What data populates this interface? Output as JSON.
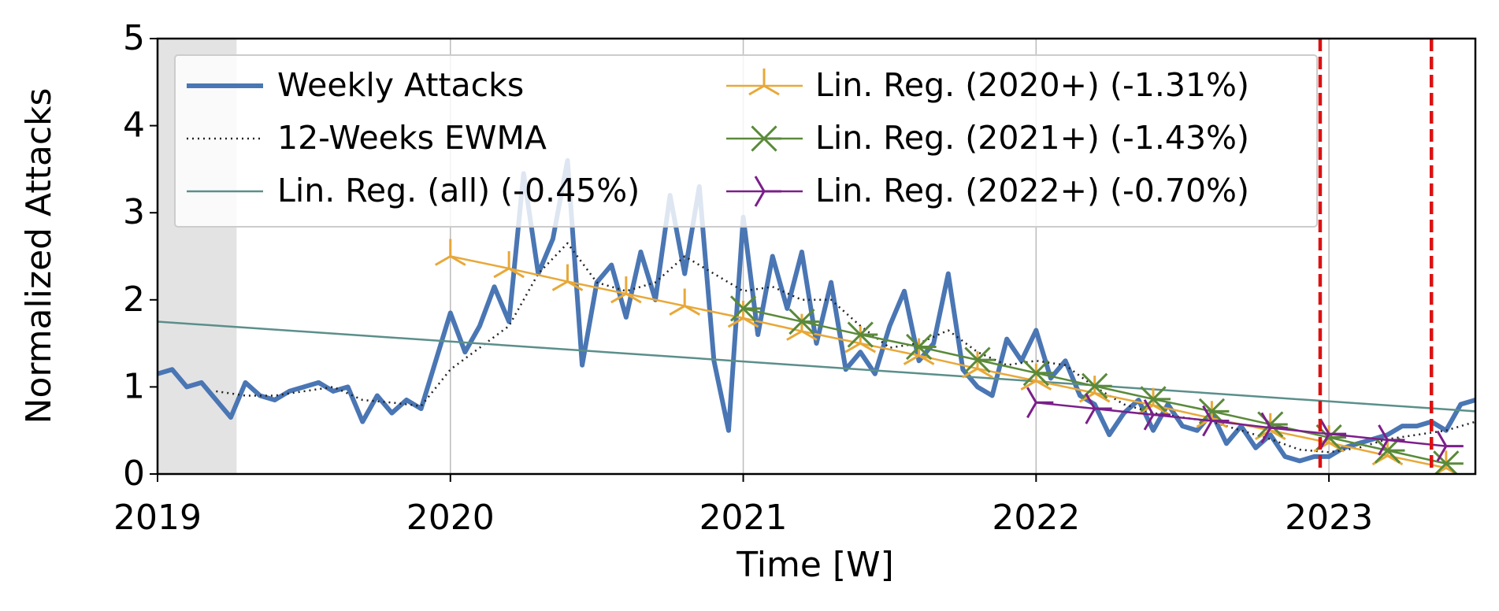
{
  "chart_data": {
    "type": "line",
    "xlabel": "Time [W]",
    "ylabel": "Normalized Attacks",
    "xlim": [
      2019,
      2023.5
    ],
    "ylim": [
      0,
      5
    ],
    "xticks": [
      2019,
      2020,
      2021,
      2022,
      2023
    ],
    "yticks": [
      0,
      1,
      2,
      3,
      4,
      5
    ],
    "grid": "x",
    "legend": "upper left",
    "shaded_span": [
      2019,
      2019.27
    ],
    "shaded_color": "#e3e3e3",
    "vlines": [
      2022.97,
      2023.35
    ],
    "vline_color": "#dd1111",
    "series": [
      {
        "name": "Weekly Attacks",
        "color": "#4a76b4",
        "linestyle": "thick",
        "x": [
          2019.0,
          2019.05,
          2019.1,
          2019.15,
          2019.2,
          2019.25,
          2019.3,
          2019.35,
          2019.4,
          2019.45,
          2019.5,
          2019.55,
          2019.6,
          2019.65,
          2019.7,
          2019.75,
          2019.8,
          2019.85,
          2019.9,
          2019.95,
          2020.0,
          2020.05,
          2020.1,
          2020.15,
          2020.2,
          2020.25,
          2020.3,
          2020.35,
          2020.4,
          2020.45,
          2020.5,
          2020.55,
          2020.6,
          2020.65,
          2020.7,
          2020.75,
          2020.8,
          2020.85,
          2020.9,
          2020.95,
          2021.0,
          2021.05,
          2021.1,
          2021.15,
          2021.2,
          2021.25,
          2021.3,
          2021.35,
          2021.4,
          2021.45,
          2021.5,
          2021.55,
          2021.6,
          2021.65,
          2021.7,
          2021.75,
          2021.8,
          2021.85,
          2021.9,
          2021.95,
          2022.0,
          2022.05,
          2022.1,
          2022.15,
          2022.2,
          2022.25,
          2022.3,
          2022.35,
          2022.4,
          2022.45,
          2022.5,
          2022.55,
          2022.6,
          2022.65,
          2022.7,
          2022.75,
          2022.8,
          2022.85,
          2022.9,
          2022.95,
          2023.0,
          2023.05,
          2023.1,
          2023.15,
          2023.2,
          2023.25,
          2023.3,
          2023.35,
          2023.4,
          2023.45,
          2023.5
        ],
        "values": [
          1.15,
          1.2,
          1.0,
          1.05,
          0.85,
          0.65,
          1.05,
          0.9,
          0.85,
          0.95,
          1.0,
          1.05,
          0.95,
          1.0,
          0.6,
          0.9,
          0.7,
          0.85,
          0.75,
          1.3,
          1.85,
          1.4,
          1.7,
          2.15,
          1.75,
          3.45,
          2.3,
          2.7,
          3.6,
          1.25,
          2.2,
          2.4,
          1.8,
          2.55,
          2.0,
          3.2,
          2.3,
          3.3,
          1.3,
          0.5,
          2.95,
          1.6,
          2.5,
          1.9,
          2.55,
          1.5,
          2.2,
          1.2,
          1.4,
          1.15,
          1.7,
          2.1,
          1.3,
          1.5,
          2.3,
          1.2,
          1.0,
          0.9,
          1.55,
          1.3,
          1.65,
          1.1,
          1.3,
          0.9,
          0.8,
          0.45,
          0.7,
          0.85,
          0.5,
          0.8,
          0.55,
          0.5,
          0.7,
          0.35,
          0.55,
          0.3,
          0.45,
          0.2,
          0.15,
          0.2,
          0.2,
          0.3,
          0.35,
          0.4,
          0.45,
          0.55,
          0.55,
          0.6,
          0.5,
          0.8,
          0.85
        ]
      },
      {
        "name": "12-Weeks EWMA",
        "color": "#222222",
        "linestyle": "dotted",
        "x": [
          2019.2,
          2019.3,
          2019.4,
          2019.5,
          2019.6,
          2019.7,
          2019.8,
          2019.9,
          2020.0,
          2020.1,
          2020.2,
          2020.3,
          2020.4,
          2020.5,
          2020.6,
          2020.7,
          2020.8,
          2020.9,
          2021.0,
          2021.1,
          2021.2,
          2021.3,
          2021.4,
          2021.5,
          2021.6,
          2021.7,
          2021.8,
          2021.9,
          2022.0,
          2022.1,
          2022.2,
          2022.3,
          2022.4,
          2022.5,
          2022.6,
          2022.7,
          2022.8,
          2022.9,
          2023.0,
          2023.1,
          2023.2,
          2023.3,
          2023.4,
          2023.5
        ],
        "values": [
          0.95,
          0.9,
          0.9,
          0.95,
          1.0,
          0.85,
          0.82,
          0.78,
          1.2,
          1.45,
          1.7,
          2.3,
          2.65,
          2.2,
          2.1,
          2.2,
          2.5,
          2.3,
          2.1,
          2.15,
          2.0,
          2.0,
          1.7,
          1.45,
          1.5,
          1.65,
          1.4,
          1.25,
          1.3,
          1.25,
          1.0,
          0.8,
          0.7,
          0.65,
          0.6,
          0.5,
          0.4,
          0.28,
          0.25,
          0.3,
          0.4,
          0.45,
          0.5,
          0.6
        ]
      },
      {
        "name": "Lin. Reg. (all) (-0.45%)",
        "color": "#5b8f8a",
        "linestyle": "solid",
        "x": [
          2019.0,
          2023.5
        ],
        "values": [
          1.75,
          0.72
        ]
      },
      {
        "name": "Lin. Reg. (2020+) (-1.31%)",
        "color": "#e8a838",
        "linestyle": "solid",
        "marker": "tri_down",
        "x": [
          2020.0,
          2020.2,
          2020.4,
          2020.6,
          2020.8,
          2021.0,
          2021.2,
          2021.4,
          2021.6,
          2021.8,
          2022.0,
          2022.2,
          2022.4,
          2022.6,
          2022.8,
          2023.0,
          2023.2,
          2023.4
        ],
        "values": [
          2.5,
          2.36,
          2.21,
          2.07,
          1.93,
          1.79,
          1.64,
          1.5,
          1.36,
          1.21,
          1.07,
          0.93,
          0.79,
          0.64,
          0.5,
          0.36,
          0.21,
          0.07
        ]
      },
      {
        "name": "Lin. Reg. (2021+) (-1.43%)",
        "color": "#5a8a3a",
        "linestyle": "solid",
        "marker": "tri_star",
        "x": [
          2021.0,
          2021.2,
          2021.4,
          2021.6,
          2021.8,
          2022.0,
          2022.2,
          2022.4,
          2022.6,
          2022.8,
          2023.0,
          2023.2,
          2023.4
        ],
        "values": [
          1.9,
          1.75,
          1.6,
          1.46,
          1.31,
          1.16,
          1.01,
          0.86,
          0.72,
          0.57,
          0.42,
          0.27,
          0.12
        ]
      },
      {
        "name": "Lin. Reg. (2022+) (-0.70%)",
        "color": "#7b1f8a",
        "linestyle": "solid",
        "marker": "tri_left",
        "x": [
          2022.0,
          2022.2,
          2022.4,
          2022.6,
          2022.8,
          2023.0,
          2023.2,
          2023.4
        ],
        "values": [
          0.82,
          0.75,
          0.68,
          0.61,
          0.53,
          0.46,
          0.39,
          0.32
        ]
      }
    ]
  }
}
